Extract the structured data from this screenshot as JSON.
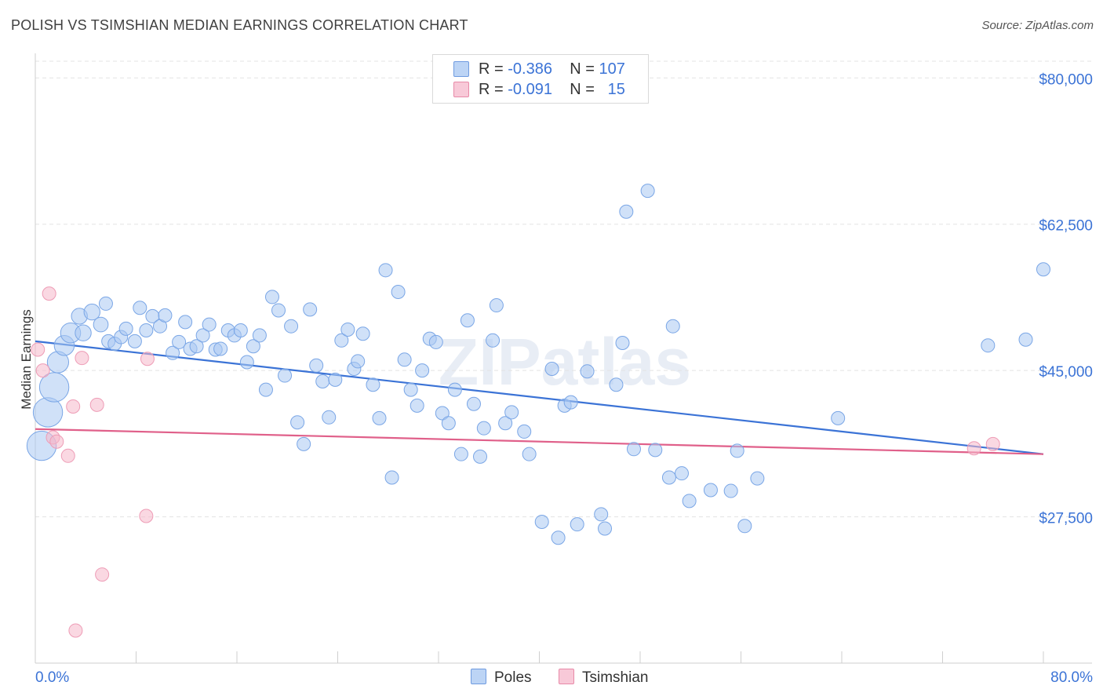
{
  "title": "POLISH VS TSIMSHIAN MEDIAN EARNINGS CORRELATION CHART",
  "source": "Source: ZipAtlas.com",
  "watermark": "ZIPatlas",
  "legend_top": [
    {
      "r_label": "R = ",
      "r_value": "-0.386",
      "n_label": "N = ",
      "n_value": "107",
      "color": "#a9c8f2"
    },
    {
      "r_label": "R = ",
      "r_value": "-0.091",
      "n_label": "N = ",
      "n_value": "15",
      "color": "#f5b8cb"
    }
  ],
  "legend_bottom": [
    {
      "label": "Poles",
      "color": "#a9c8f2"
    },
    {
      "label": "Tsimshian",
      "color": "#f5b8cb"
    }
  ],
  "chart_data": {
    "type": "scatter",
    "title": "POLISH VS TSIMSHIAN MEDIAN EARNINGS CORRELATION CHART",
    "xlabel": "",
    "ylabel": "Median Earnings",
    "xlim": [
      0,
      80
    ],
    "ylim": [
      10000,
      82000
    ],
    "x_tick_labels": [
      "0.0%",
      "80.0%"
    ],
    "y_ticks": [
      27500,
      45000,
      62500,
      80000
    ],
    "y_tick_labels": [
      "$27,500",
      "$45,000",
      "$62,500",
      "$80,000"
    ],
    "grid": true,
    "series": [
      {
        "name": "Poles",
        "color": "#3b73d6",
        "fill": "#a9c8f2",
        "trend": [
          [
            0,
            48500
          ],
          [
            80,
            35000
          ]
        ],
        "points": [
          [
            0.5,
            36000,
            2.2
          ],
          [
            1.0,
            40000,
            2.2
          ],
          [
            1.5,
            43000,
            2.2
          ],
          [
            1.8,
            46000,
            1.6
          ],
          [
            2.3,
            48000,
            1.5
          ],
          [
            2.8,
            49500,
            1.5
          ],
          [
            3.5,
            51500,
            1.2
          ],
          [
            3.8,
            49500,
            1.2
          ],
          [
            4.5,
            52000,
            1.2
          ],
          [
            5.2,
            50500,
            1.1
          ],
          [
            5.6,
            53000,
            1.0
          ],
          [
            5.8,
            48500,
            1.0
          ],
          [
            6.3,
            48200,
            1.0
          ],
          [
            6.8,
            49000,
            1.0
          ],
          [
            7.2,
            50000,
            1.0
          ],
          [
            7.9,
            48500,
            1.0
          ],
          [
            8.3,
            52500,
            1.0
          ],
          [
            8.8,
            49800,
            1.0
          ],
          [
            9.3,
            51500,
            1.0
          ],
          [
            9.9,
            50300,
            1.0
          ],
          [
            10.3,
            51600,
            1.0
          ],
          [
            10.9,
            47100,
            1.0
          ],
          [
            11.4,
            48400,
            1.0
          ],
          [
            11.9,
            50800,
            1.0
          ],
          [
            12.3,
            47600,
            1.0
          ],
          [
            12.8,
            47900,
            1.0
          ],
          [
            13.3,
            49200,
            1.0
          ],
          [
            13.8,
            50500,
            1.0
          ],
          [
            14.3,
            47500,
            1.0
          ],
          [
            14.7,
            47600,
            1.0
          ],
          [
            15.3,
            49800,
            1.0
          ],
          [
            15.8,
            49200,
            1.0
          ],
          [
            16.3,
            49800,
            1.0
          ],
          [
            16.8,
            46000,
            1.0
          ],
          [
            17.3,
            47900,
            1.0
          ],
          [
            17.8,
            49200,
            1.0
          ],
          [
            18.3,
            42700,
            1.0
          ],
          [
            18.8,
            53800,
            1.0
          ],
          [
            19.3,
            52200,
            1.0
          ],
          [
            19.8,
            44400,
            1.0
          ],
          [
            20.3,
            50300,
            1.0
          ],
          [
            20.8,
            38800,
            1.0
          ],
          [
            21.3,
            36200,
            1.0
          ],
          [
            21.8,
            52300,
            1.0
          ],
          [
            22.3,
            45600,
            1.0
          ],
          [
            22.8,
            43700,
            1.0
          ],
          [
            23.3,
            39400,
            1.0
          ],
          [
            23.8,
            43900,
            1.0
          ],
          [
            24.3,
            48600,
            1.0
          ],
          [
            24.8,
            49900,
            1.0
          ],
          [
            25.3,
            45200,
            1.0
          ],
          [
            25.6,
            46100,
            1.0
          ],
          [
            26.0,
            49400,
            1.0
          ],
          [
            26.8,
            43300,
            1.0
          ],
          [
            27.3,
            39300,
            1.0
          ],
          [
            27.8,
            57000,
            1.0
          ],
          [
            28.3,
            32200,
            1.0
          ],
          [
            28.8,
            54400,
            1.0
          ],
          [
            29.3,
            46300,
            1.0
          ],
          [
            29.8,
            42700,
            1.0
          ],
          [
            30.3,
            40800,
            1.0
          ],
          [
            30.7,
            45000,
            1.0
          ],
          [
            31.3,
            48800,
            1.0
          ],
          [
            31.8,
            48400,
            1.0
          ],
          [
            32.3,
            39900,
            1.0
          ],
          [
            32.8,
            38700,
            1.0
          ],
          [
            33.3,
            42700,
            1.0
          ],
          [
            33.8,
            35000,
            1.0
          ],
          [
            34.3,
            51000,
            1.0
          ],
          [
            34.8,
            41000,
            1.0
          ],
          [
            35.3,
            34700,
            1.0
          ],
          [
            35.6,
            38100,
            1.0
          ],
          [
            36.3,
            48600,
            1.0
          ],
          [
            36.6,
            52800,
            1.0
          ],
          [
            37.3,
            38700,
            1.0
          ],
          [
            37.8,
            40000,
            1.0
          ],
          [
            38.8,
            37700,
            1.0
          ],
          [
            39.2,
            35000,
            1.0
          ],
          [
            40.2,
            26900,
            1.0
          ],
          [
            41.0,
            45200,
            1.0
          ],
          [
            41.5,
            25000,
            1.0
          ],
          [
            42.0,
            40800,
            1.0
          ],
          [
            42.5,
            41200,
            1.0
          ],
          [
            43.0,
            26600,
            1.0
          ],
          [
            43.8,
            44900,
            1.0
          ],
          [
            44.9,
            27800,
            1.0
          ],
          [
            45.2,
            26100,
            1.0
          ],
          [
            46.1,
            43300,
            1.0
          ],
          [
            46.6,
            48300,
            1.0
          ],
          [
            46.9,
            64000,
            1.0
          ],
          [
            47.5,
            35600,
            1.0
          ],
          [
            48.6,
            66500,
            1.0
          ],
          [
            49.2,
            35500,
            1.0
          ],
          [
            50.3,
            32200,
            1.0
          ],
          [
            50.6,
            50300,
            1.0
          ],
          [
            51.3,
            32700,
            1.0
          ],
          [
            51.9,
            29400,
            1.0
          ],
          [
            53.6,
            30700,
            1.0
          ],
          [
            55.2,
            30600,
            1.0
          ],
          [
            55.7,
            35400,
            1.0
          ],
          [
            56.3,
            26400,
            1.0
          ],
          [
            57.3,
            32100,
            1.0
          ],
          [
            63.7,
            39300,
            1.0
          ],
          [
            75.6,
            48000,
            1.0
          ],
          [
            78.6,
            48700,
            1.0
          ],
          [
            80.0,
            57100,
            1.0
          ]
        ]
      },
      {
        "name": "Tsimshian",
        "color": "#e0608a",
        "fill": "#f5b8cb",
        "trend": [
          [
            0,
            38000
          ],
          [
            80,
            35000
          ]
        ],
        "points": [
          [
            0.2,
            47500,
            1.0
          ],
          [
            0.6,
            45000,
            1.0
          ],
          [
            1.1,
            54200,
            1.0
          ],
          [
            1.4,
            37000,
            1.0
          ],
          [
            1.7,
            36500,
            1.0
          ],
          [
            2.6,
            34800,
            1.0
          ],
          [
            3.0,
            40700,
            1.0
          ],
          [
            3.2,
            13900,
            1.0
          ],
          [
            3.7,
            46500,
            1.0
          ],
          [
            4.9,
            40900,
            1.0
          ],
          [
            5.3,
            20600,
            1.0
          ],
          [
            8.8,
            27600,
            1.0
          ],
          [
            8.9,
            46400,
            1.0
          ],
          [
            74.5,
            35700,
            1.0
          ],
          [
            76.0,
            36200,
            1.0
          ]
        ]
      }
    ]
  }
}
